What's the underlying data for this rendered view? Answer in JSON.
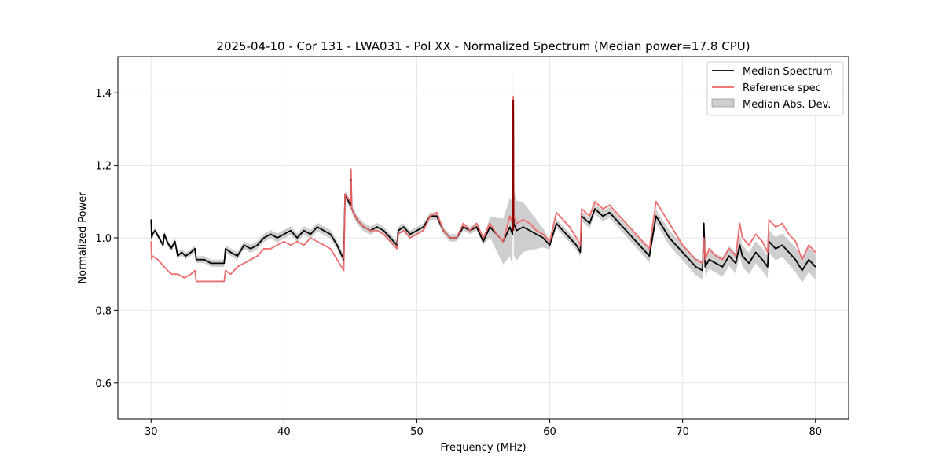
{
  "chart_data": {
    "type": "line",
    "title": "2025-04-10 - Cor 131 - LWA031 - Pol XX - Normalized Spectrum (Median power=17.8 CPU)",
    "xlabel": "Frequency (MHz)",
    "ylabel": "Normalized Power",
    "xlim": [
      27.5,
      82.5
    ],
    "ylim": [
      0.5,
      1.5
    ],
    "xticks": [
      30,
      40,
      50,
      60,
      70,
      80
    ],
    "yticks": [
      0.6,
      0.8,
      1.0,
      1.2,
      1.4
    ],
    "grid": true,
    "legend_position": "top-right",
    "legend": [
      "Median Spectrum",
      "Reference spec",
      "Median Abs. Dev."
    ],
    "colors": {
      "median": "#000000",
      "reference": "#f06464",
      "mad": "#bdbdbd",
      "overlap": "#8b0000"
    },
    "series": [
      {
        "name": "Median Spectrum",
        "x": [
          30.0,
          30.05,
          30.1,
          30.3,
          30.6,
          30.9,
          31.0,
          31.2,
          31.5,
          31.8,
          32.0,
          32.3,
          32.6,
          33.0,
          33.3,
          33.4,
          34.0,
          34.5,
          35.0,
          35.5,
          35.6,
          36.0,
          36.5,
          37.0,
          37.5,
          38.0,
          38.5,
          39.0,
          39.5,
          40.0,
          40.5,
          41.0,
          41.5,
          42.0,
          42.5,
          43.0,
          43.5,
          44.0,
          44.5,
          44.6,
          45.0,
          45.05,
          45.1,
          45.5,
          46.0,
          46.5,
          47.0,
          47.5,
          48.0,
          48.5,
          48.6,
          49.0,
          49.5,
          50.0,
          50.5,
          51.0,
          51.5,
          52.0,
          52.5,
          53.0,
          53.5,
          54.0,
          54.5,
          55.0,
          55.5,
          56.0,
          56.5,
          57.0,
          57.2,
          57.25,
          57.3,
          57.5,
          58.0,
          58.5,
          59.0,
          59.5,
          60.0,
          60.5,
          61.0,
          61.5,
          62.0,
          62.3,
          62.4,
          63.0,
          63.4,
          64.0,
          64.5,
          65.0,
          65.5,
          66.0,
          66.5,
          67.0,
          67.5,
          68.0,
          68.5,
          69.0,
          69.5,
          70.0,
          70.5,
          71.0,
          71.5,
          71.6,
          71.7,
          72.0,
          72.5,
          73.0,
          73.5,
          74.0,
          74.3,
          74.5,
          75.0,
          75.5,
          76.0,
          76.4,
          76.5,
          77.0,
          77.5,
          78.0,
          78.5,
          79.0,
          79.5,
          80.0
        ],
        "y": [
          1.05,
          1.0,
          1.01,
          1.02,
          1.0,
          0.98,
          1.01,
          0.99,
          0.97,
          0.99,
          0.95,
          0.96,
          0.95,
          0.96,
          0.97,
          0.94,
          0.94,
          0.93,
          0.93,
          0.93,
          0.97,
          0.96,
          0.95,
          0.98,
          0.97,
          0.98,
          1.0,
          1.01,
          1.0,
          1.01,
          1.02,
          1.0,
          1.02,
          1.01,
          1.03,
          1.02,
          1.01,
          0.98,
          0.94,
          1.12,
          1.09,
          1.16,
          1.08,
          1.05,
          1.03,
          1.02,
          1.03,
          1.02,
          1.0,
          0.98,
          1.02,
          1.03,
          1.01,
          1.02,
          1.03,
          1.06,
          1.06,
          1.02,
          1.0,
          1.0,
          1.03,
          1.02,
          1.03,
          0.99,
          1.03,
          1.01,
          0.99,
          1.03,
          1.01,
          1.38,
          1.04,
          1.02,
          1.03,
          1.02,
          1.01,
          1.0,
          0.98,
          1.04,
          1.02,
          1.0,
          0.98,
          0.96,
          1.06,
          1.04,
          1.08,
          1.06,
          1.07,
          1.05,
          1.03,
          1.01,
          0.99,
          0.97,
          0.95,
          1.06,
          1.03,
          1.0,
          0.98,
          0.96,
          0.94,
          0.92,
          0.91,
          1.04,
          0.92,
          0.94,
          0.93,
          0.92,
          0.95,
          0.93,
          0.98,
          0.95,
          0.93,
          0.96,
          0.94,
          0.92,
          0.99,
          0.97,
          0.98,
          0.96,
          0.94,
          0.91,
          0.94,
          0.92
        ]
      },
      {
        "name": "Reference spec",
        "x": [
          30.0,
          30.05,
          30.1,
          30.5,
          31.0,
          31.5,
          32.0,
          32.5,
          33.0,
          33.3,
          33.4,
          34.0,
          34.5,
          35.0,
          35.5,
          35.6,
          36.0,
          36.5,
          37.0,
          37.5,
          38.0,
          38.5,
          39.0,
          39.5,
          40.0,
          40.5,
          41.0,
          41.5,
          42.0,
          42.5,
          43.0,
          43.5,
          44.0,
          44.5,
          44.6,
          45.0,
          45.05,
          45.1,
          45.5,
          46.0,
          46.5,
          47.0,
          47.5,
          48.0,
          48.5,
          48.6,
          49.0,
          49.5,
          50.0,
          50.5,
          51.0,
          51.5,
          52.0,
          52.5,
          53.0,
          53.5,
          54.0,
          54.5,
          55.0,
          55.5,
          56.0,
          56.5,
          57.0,
          57.2,
          57.25,
          57.3,
          57.5,
          58.0,
          58.5,
          59.0,
          59.5,
          60.0,
          60.5,
          61.0,
          61.5,
          62.0,
          62.3,
          62.4,
          63.0,
          63.4,
          64.0,
          64.5,
          65.0,
          65.5,
          66.0,
          66.5,
          67.0,
          67.5,
          68.0,
          68.5,
          69.0,
          69.5,
          70.0,
          70.5,
          71.0,
          71.5,
          71.6,
          71.7,
          72.0,
          72.5,
          73.0,
          73.5,
          74.0,
          74.3,
          74.5,
          75.0,
          75.5,
          76.0,
          76.4,
          76.5,
          77.0,
          77.5,
          78.0,
          78.5,
          79.0,
          79.5,
          80.0
        ],
        "y": [
          0.99,
          0.94,
          0.95,
          0.94,
          0.92,
          0.9,
          0.9,
          0.89,
          0.9,
          0.91,
          0.88,
          0.88,
          0.88,
          0.88,
          0.88,
          0.91,
          0.9,
          0.92,
          0.93,
          0.94,
          0.95,
          0.97,
          0.97,
          0.98,
          0.99,
          0.98,
          0.99,
          0.98,
          1.0,
          0.99,
          0.98,
          0.97,
          0.94,
          0.91,
          1.12,
          1.1,
          1.19,
          1.08,
          1.05,
          1.03,
          1.02,
          1.02,
          1.01,
          0.99,
          0.97,
          1.01,
          1.02,
          1.0,
          1.01,
          1.02,
          1.06,
          1.07,
          1.02,
          1.0,
          1.0,
          1.04,
          1.02,
          1.04,
          1.0,
          1.04,
          1.01,
          0.99,
          1.06,
          1.04,
          1.39,
          1.06,
          1.04,
          1.05,
          1.04,
          1.02,
          1.01,
          0.99,
          1.07,
          1.05,
          1.03,
          1.0,
          0.98,
          1.08,
          1.06,
          1.1,
          1.08,
          1.09,
          1.07,
          1.05,
          1.03,
          1.01,
          0.99,
          0.97,
          1.1,
          1.07,
          1.04,
          1.01,
          0.98,
          0.96,
          0.94,
          0.93,
          1.0,
          0.94,
          0.97,
          0.95,
          0.94,
          0.97,
          0.95,
          1.04,
          1.0,
          0.98,
          1.01,
          0.99,
          0.96,
          1.05,
          1.03,
          1.04,
          1.01,
          0.99,
          0.94,
          0.98,
          0.96
        ]
      },
      {
        "name": "Median Abs. Dev.",
        "note": "band = Median Spectrum ± deviation",
        "x": [
          30,
          35,
          40,
          45,
          50,
          55,
          57.25,
          60,
          65,
          70,
          75,
          80
        ],
        "y": [
          0.008,
          0.01,
          0.012,
          0.012,
          0.01,
          0.01,
          0.09,
          0.012,
          0.015,
          0.022,
          0.03,
          0.035
        ]
      }
    ]
  }
}
